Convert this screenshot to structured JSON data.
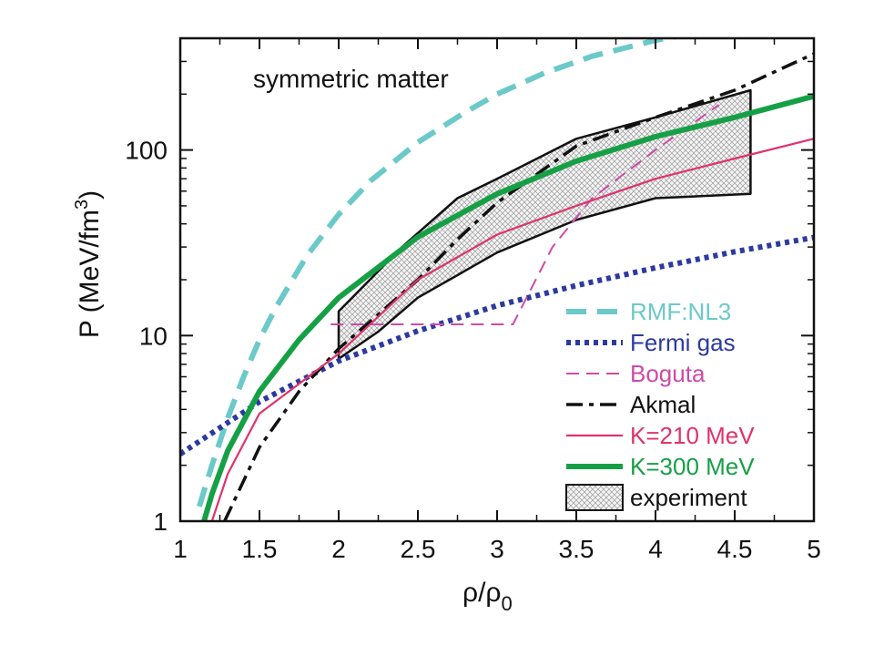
{
  "chart_data": {
    "type": "line",
    "title": "",
    "annotation": "symmetric matter",
    "xlabel": {
      "main": "ρ/ρ",
      "sub": "0"
    },
    "ylabel": {
      "main": "P (MeV/fm",
      "sup": "3",
      "end": ")"
    },
    "xlim": [
      1,
      5
    ],
    "ylim": [
      1,
      400
    ],
    "yscale": "log",
    "grid": false,
    "legend_position": "bottom-right",
    "x_ticks": [
      1,
      1.5,
      2,
      2.5,
      3,
      3.5,
      4,
      4.5,
      5
    ],
    "x_tick_labels": [
      "1",
      "1.5",
      "2",
      "2.5",
      "3",
      "3.5",
      "4",
      "4.5",
      "5"
    ],
    "y_ticks": [
      1,
      10,
      100
    ],
    "y_tick_labels": [
      "1",
      "10",
      "100"
    ],
    "series": [
      {
        "name": "RMF:NL3",
        "color": "#6cc9c9",
        "style": "dashed",
        "x": [
          1.12,
          1.2,
          1.3,
          1.4,
          1.5,
          1.6,
          1.8,
          2.0,
          2.2,
          2.5,
          2.8,
          3.0,
          3.3,
          3.6,
          4.0,
          4.2
        ],
        "y": [
          1.2,
          2.0,
          3.6,
          6.0,
          9.5,
          14,
          27,
          45,
          68,
          110,
          160,
          200,
          260,
          320,
          390,
          420
        ]
      },
      {
        "name": "Fermi gas",
        "color": "#2c3aa0",
        "style": "dotted",
        "x": [
          1.0,
          1.5,
          2.0,
          2.5,
          3.0,
          3.5,
          4.0,
          4.5,
          5.0
        ],
        "y": [
          2.3,
          4.4,
          7.3,
          10.6,
          14.5,
          18.6,
          23.2,
          28.3,
          33.8
        ]
      },
      {
        "name": "Boguta",
        "color": "#cf4aa8",
        "style": "dashed-thin",
        "x": [
          1.95,
          2.5,
          3.1,
          3.35,
          3.6,
          4.0,
          4.4
        ],
        "y": [
          11.5,
          11.5,
          11.5,
          30,
          55,
          100,
          175
        ]
      },
      {
        "name": "Akmal",
        "color": "#111111",
        "style": "dashdot",
        "x": [
          1.28,
          1.5,
          1.75,
          2.0,
          2.25,
          2.5,
          2.75,
          3.0,
          3.5,
          4.0,
          4.5,
          5.0
        ],
        "y": [
          1.0,
          2.5,
          5.0,
          8.5,
          13,
          20,
          33,
          52,
          105,
          150,
          210,
          330
        ]
      },
      {
        "name": "K=210 MeV",
        "color": "#e0336a",
        "style": "solid-thin",
        "x": [
          1.2,
          1.3,
          1.5,
          1.75,
          2.0,
          2.5,
          3.0,
          3.5,
          4.0,
          4.5,
          5.0
        ],
        "y": [
          1.0,
          1.8,
          3.8,
          5.5,
          8.0,
          20,
          35,
          50,
          70,
          90,
          115
        ]
      },
      {
        "name": "K=300 MeV",
        "color": "#16a046",
        "style": "solid-thick",
        "x": [
          1.15,
          1.2,
          1.3,
          1.5,
          1.75,
          2.0,
          2.5,
          3.0,
          3.5,
          4.0,
          4.5,
          5.0
        ],
        "y": [
          1.0,
          1.4,
          2.4,
          5.0,
          9.5,
          16,
          34,
          58,
          87,
          118,
          150,
          195
        ]
      }
    ],
    "experiment": {
      "name": "experiment",
      "upper": {
        "x": [
          2.0,
          2.4,
          2.75,
          3.0,
          3.5,
          4.0,
          4.6
        ],
        "y": [
          13.5,
          30,
          55,
          70,
          115,
          150,
          210
        ]
      },
      "lower": {
        "x": [
          2.0,
          2.25,
          2.5,
          3.0,
          3.5,
          4.0,
          4.6
        ],
        "y": [
          7.5,
          10.5,
          16,
          28,
          42,
          55,
          58
        ]
      }
    }
  }
}
